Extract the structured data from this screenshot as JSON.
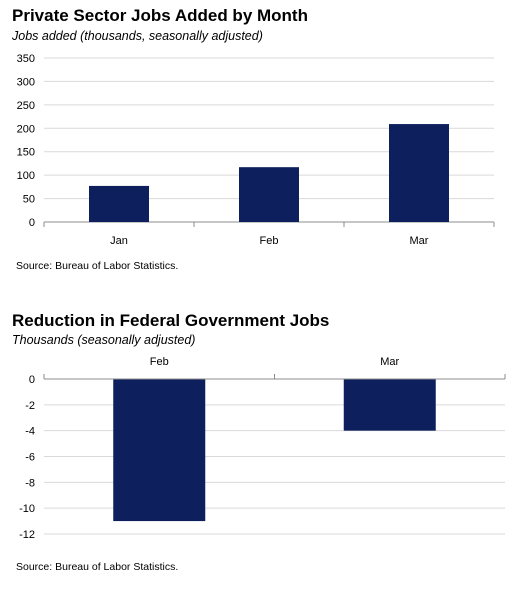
{
  "chart_data": [
    {
      "type": "bar",
      "title": "Private Sector Jobs Added by Month",
      "subtitle": "Jobs added (thousands, seasonally adjusted)",
      "categories": [
        "Jan",
        "Feb",
        "Mar"
      ],
      "values": [
        77,
        117,
        209
      ],
      "ylim": [
        0,
        350
      ],
      "yticks": [
        0,
        50,
        100,
        150,
        200,
        250,
        300,
        350
      ],
      "grid": true,
      "source": "Source: Bureau of Labor Statistics.",
      "bar_color": "#0d1f5c"
    },
    {
      "type": "bar",
      "title": "Reduction in Federal Government Jobs",
      "subtitle": "Thousands (seasonally adjusted)",
      "categories": [
        "Feb",
        "Mar"
      ],
      "values": [
        -11,
        -4
      ],
      "ylim": [
        -12,
        0
      ],
      "yticks": [
        0,
        -2,
        -4,
        -6,
        -8,
        -10,
        -12
      ],
      "grid": true,
      "category_labels_position": "top",
      "source": "Source: Bureau of Labor Statistics.",
      "bar_color": "#0d1f5c"
    }
  ]
}
